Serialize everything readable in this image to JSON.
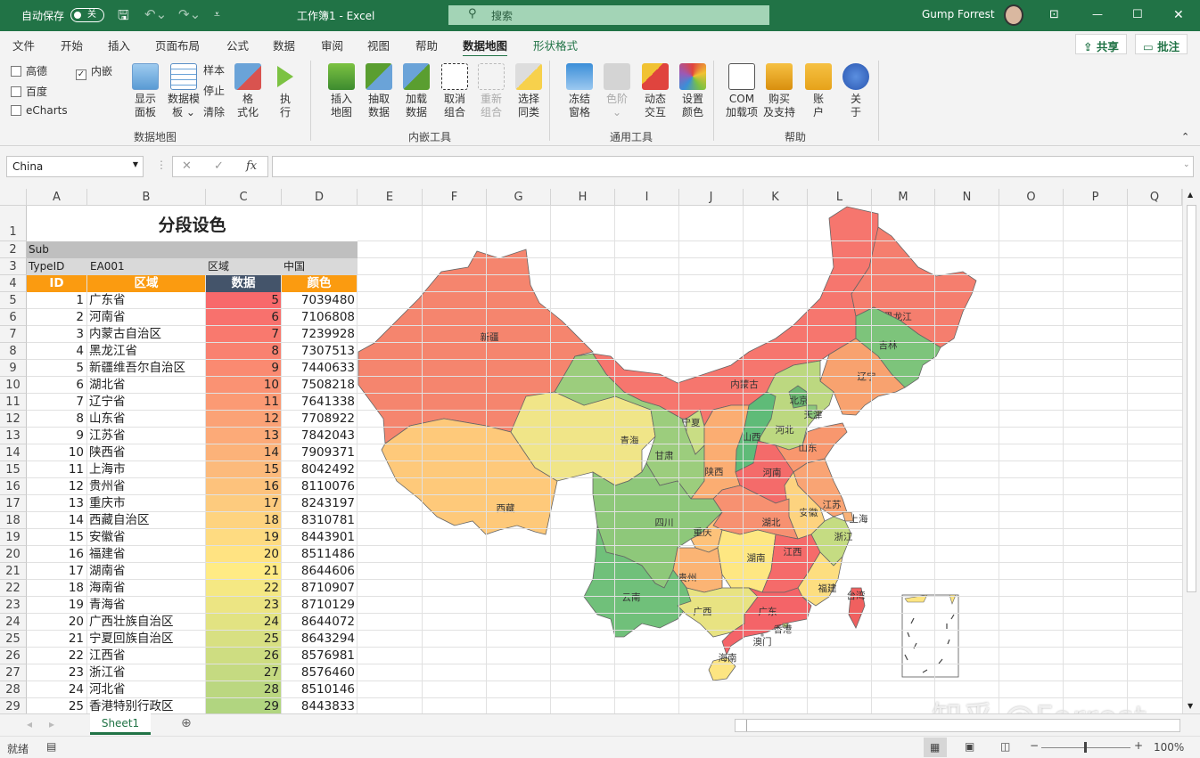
{
  "titlebar": {
    "autosave_label": "自动保存",
    "autosave_state": "关",
    "title": "工作簿1  -  Excel",
    "search_placeholder": "搜索",
    "user": "Gump Forrest"
  },
  "tabs": [
    "文件",
    "开始",
    "插入",
    "页面布局",
    "公式",
    "数据",
    "审阅",
    "视图",
    "帮助",
    "数据地图",
    "形状格式"
  ],
  "active_tab": "数据地图",
  "share_label": "共享",
  "comment_label": "批注",
  "ribbon": {
    "checkboxes": [
      {
        "label": "高德",
        "checked": false
      },
      {
        "label": "百度",
        "checked": false
      },
      {
        "label": "eCharts",
        "checked": false
      },
      {
        "label": "内嵌",
        "checked": true
      }
    ],
    "group1": {
      "label": "数据地图",
      "show_panel": "显示\n面板",
      "data_template": "数据模\n板 ⌄",
      "sample": "样本",
      "stop": "停止",
      "clear": "清除",
      "format": "格\n式化",
      "run": "执\n行"
    },
    "group2": {
      "label": "内嵌工具",
      "buttons": [
        "插入\n地图",
        "抽取\n数据",
        "加载\n数据",
        "取消\n组合",
        "重新\n组合",
        "选择\n同类"
      ]
    },
    "group3": {
      "label": "通用工具",
      "buttons": [
        "冻结\n窗格",
        "色阶\n⌄",
        "动态\n交互",
        "设置\n颜色"
      ]
    },
    "group4": {
      "label": "帮助",
      "buttons": [
        "COM\n加载项",
        "购买\n及支持",
        "账\n户",
        "关\n于"
      ]
    }
  },
  "formula_bar": {
    "name_box": "China",
    "formula": ""
  },
  "columns": [
    "A",
    "B",
    "C",
    "D",
    "E",
    "F",
    "G",
    "H",
    "I",
    "J",
    "K",
    "L",
    "M",
    "N",
    "O",
    "P",
    "Q"
  ],
  "sheet": {
    "title": "分段设色",
    "sub_label": "Sub",
    "row3": [
      "TypeID",
      "EA001",
      "区域",
      "中国"
    ],
    "headers": [
      "ID",
      "区域",
      "数据",
      "颜色"
    ],
    "rows": [
      {
        "id": 1,
        "region": "广东省",
        "value": 5,
        "color": 7039480
      },
      {
        "id": 2,
        "region": "河南省",
        "value": 6,
        "color": 7106808
      },
      {
        "id": 3,
        "region": "内蒙古自治区",
        "value": 7,
        "color": 7239928
      },
      {
        "id": 4,
        "region": "黑龙江省",
        "value": 8,
        "color": 7307513
      },
      {
        "id": 5,
        "region": "新疆维吾尔自治区",
        "value": 9,
        "color": 7440633
      },
      {
        "id": 6,
        "region": "湖北省",
        "value": 10,
        "color": 7508218
      },
      {
        "id": 7,
        "region": "辽宁省",
        "value": 11,
        "color": 7641338
      },
      {
        "id": 8,
        "region": "山东省",
        "value": 12,
        "color": 7708922
      },
      {
        "id": 9,
        "region": "江苏省",
        "value": 13,
        "color": 7842043
      },
      {
        "id": 10,
        "region": "陕西省",
        "value": 14,
        "color": 7909371
      },
      {
        "id": 11,
        "region": "上海市",
        "value": 15,
        "color": 8042492
      },
      {
        "id": 12,
        "region": "贵州省",
        "value": 16,
        "color": 8110076
      },
      {
        "id": 13,
        "region": "重庆市",
        "value": 17,
        "color": 8243197
      },
      {
        "id": 14,
        "region": "西藏自治区",
        "value": 18,
        "color": 8310781
      },
      {
        "id": 15,
        "region": "安徽省",
        "value": 19,
        "color": 8443901
      },
      {
        "id": 16,
        "region": "福建省",
        "value": 20,
        "color": 8511486
      },
      {
        "id": 17,
        "region": "湖南省",
        "value": 21,
        "color": 8644606
      },
      {
        "id": 18,
        "region": "海南省",
        "value": 22,
        "color": 8710907
      },
      {
        "id": 19,
        "region": "青海省",
        "value": 23,
        "color": 8710129
      },
      {
        "id": 20,
        "region": "广西壮族自治区",
        "value": 24,
        "color": 8644072
      },
      {
        "id": 21,
        "region": "宁夏回族自治区",
        "value": 25,
        "color": 8643294
      },
      {
        "id": 22,
        "region": "江西省",
        "value": 26,
        "color": 8576981
      },
      {
        "id": 23,
        "region": "浙江省",
        "value": 27,
        "color": 8576460
      },
      {
        "id": 24,
        "region": "河北省",
        "value": 28,
        "color": 8510146
      },
      {
        "id": 25,
        "region": "香港特别行政区",
        "value": 29,
        "color": 8443833
      }
    ]
  },
  "map": {
    "regions": [
      {
        "label": "新疆",
        "color": "#f5856e"
      },
      {
        "label": "西藏",
        "color": "#fec97a"
      },
      {
        "label": "青海",
        "color": "#f0e588"
      },
      {
        "label": "甘肃",
        "color": "#9ccd7d"
      },
      {
        "label": "内蒙古",
        "color": "#f6766e"
      },
      {
        "label": "黑龙江",
        "color": "#f57e6e"
      },
      {
        "label": "吉林",
        "color": "#7dc47b"
      },
      {
        "label": "辽宁",
        "color": "#f8a26f"
      },
      {
        "label": "河北",
        "color": "#bcd880"
      },
      {
        "label": "北京",
        "color": "#6cb770"
      },
      {
        "label": "天津",
        "color": "#8cc77c"
      },
      {
        "label": "山西",
        "color": "#5fbb78"
      },
      {
        "label": "宁夏",
        "color": "#c9dd84"
      },
      {
        "label": "陕西",
        "color": "#fbad72"
      },
      {
        "label": "河南",
        "color": "#f46b6a"
      },
      {
        "label": "山东",
        "color": "#f8976e"
      },
      {
        "label": "江苏",
        "color": "#f9a474"
      },
      {
        "label": "安徽",
        "color": "#fdd37f"
      },
      {
        "label": "上海",
        "color": "#f8b279"
      },
      {
        "label": "浙江",
        "color": "#c5dc82"
      },
      {
        "label": "湖北",
        "color": "#f79171"
      },
      {
        "label": "四川",
        "color": "#8ec87a"
      },
      {
        "label": "重庆",
        "color": "#fdc27a"
      },
      {
        "label": "贵州",
        "color": "#fbb474"
      },
      {
        "label": "湖南",
        "color": "#fee782"
      },
      {
        "label": "江西",
        "color": "#f56b6a"
      },
      {
        "label": "福建",
        "color": "#fdde80"
      },
      {
        "label": "云南",
        "color": "#70c07a"
      },
      {
        "label": "广西",
        "color": "#e8e382"
      },
      {
        "label": "广东",
        "color": "#f46468"
      },
      {
        "label": "海南",
        "color": "#fde582"
      },
      {
        "label": "台湾",
        "color": "#f0605f"
      },
      {
        "label": "香港",
        "color": "#c0d880"
      },
      {
        "label": "澳门",
        "color": "#ffffff"
      }
    ]
  },
  "sheet_tabs": [
    "Sheet1"
  ],
  "status": {
    "ready": "就绪",
    "zoom": "100%"
  },
  "watermark": "知乎 @Forrest"
}
